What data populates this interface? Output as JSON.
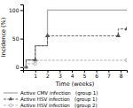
{
  "chart_data": {
    "type": "line",
    "xlabel": "Time (weeks)",
    "ylabel": "Incidence (%)",
    "xlim": [
      0,
      8.5
    ],
    "ylim": [
      -5,
      110
    ],
    "xticks": [
      1,
      2,
      3,
      4,
      5,
      6,
      7,
      8
    ],
    "yticks": [
      0,
      50,
      100
    ],
    "legend": "bottom",
    "series": [
      {
        "name": "Active CMV infection   (group 1)",
        "color": "#aaaaaa",
        "line_style": "solid",
        "x": [
          0,
          0.25,
          0.25,
          1.0,
          1.0,
          2.0,
          2.0,
          8.5
        ],
        "values": [
          0,
          0,
          12.5,
          12.5,
          37.5,
          37.5,
          100,
          100
        ]
      },
      {
        "name": "Active HSV infection   (group 1)",
        "color": "#555555",
        "line_style": "dashed",
        "marker": "triangle",
        "x": [
          0,
          0.25,
          0.25,
          1.0,
          1.0,
          2.0,
          2.0,
          7.8,
          7.8,
          8.5
        ],
        "values": [
          0,
          0,
          12.5,
          12.5,
          37.5,
          37.5,
          55,
          55,
          67,
          67
        ],
        "marker_x": [
          0.25,
          1.0,
          2.0,
          7.8,
          8.5
        ],
        "marker_values": [
          0,
          12.5,
          55,
          55,
          67
        ]
      },
      {
        "name": "Active HSV infection   (group 2)",
        "color": "#aaaaaa",
        "line_style": "dashed",
        "marker": "open-circle",
        "x": [
          0,
          0.25,
          0.25,
          1.0,
          1.0,
          8.5
        ],
        "values": [
          0,
          0,
          6,
          6,
          12,
          12
        ],
        "marker_x": [
          0.25,
          1.0,
          8.5
        ],
        "marker_values": [
          0,
          6,
          12
        ]
      }
    ]
  }
}
